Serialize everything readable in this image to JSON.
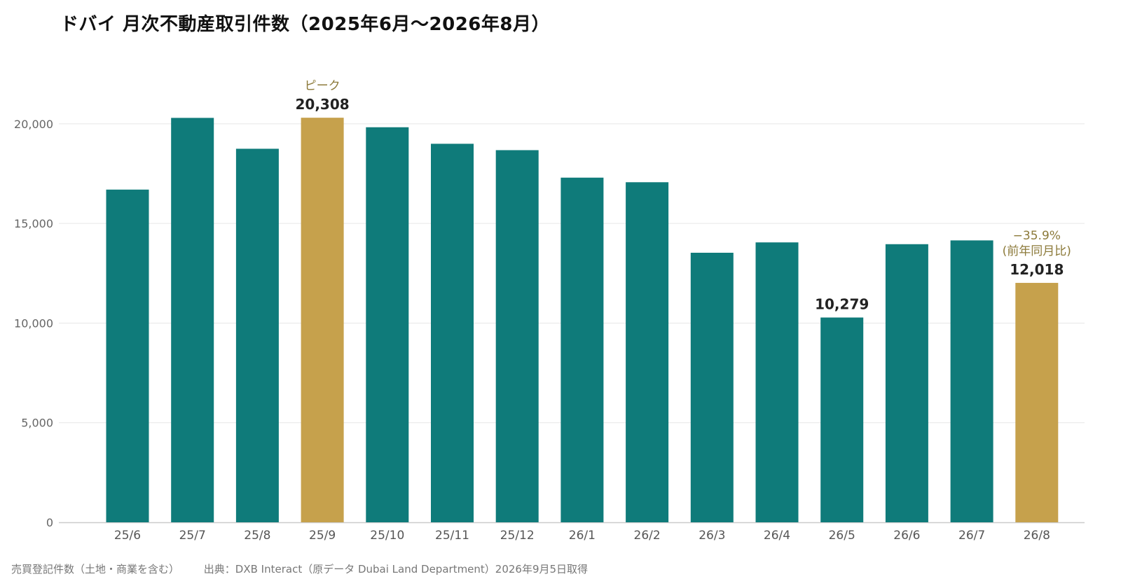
{
  "chart_data": {
    "type": "bar",
    "title": "ドバイ 月次不動産取引件数（2025年6月〜2026年8月）",
    "xlabel": "",
    "ylabel": "",
    "categories": [
      "25/6",
      "25/7",
      "25/8",
      "25/9",
      "25/10",
      "25/11",
      "25/12",
      "26/1",
      "26/2",
      "26/3",
      "26/4",
      "26/5",
      "26/6",
      "26/7",
      "26/8"
    ],
    "values": [
      16700,
      20300,
      18750,
      20308,
      19830,
      19000,
      18680,
      17300,
      17070,
      13530,
      14050,
      10279,
      13960,
      14150,
      12018
    ],
    "ylim": [
      0,
      22000
    ],
    "yticks": [
      0,
      5000,
      10000,
      15000,
      20000
    ],
    "ytick_labels": [
      "0",
      "5,000",
      "10,000",
      "15,000",
      "20,000"
    ],
    "grid": true,
    "legend": "none",
    "colors": {
      "default": "#0f7b7a",
      "highlight": "#c6a14c",
      "annotation": "#8c7a3a",
      "grid": "#e6e6e6",
      "axis_text": "#666666",
      "value_label": "#222222"
    },
    "highlights": [
      3,
      14
    ],
    "value_labels": [
      {
        "index": 3,
        "text": "20,308"
      },
      {
        "index": 11,
        "text": "10,279"
      },
      {
        "index": 14,
        "text": "12,018"
      }
    ],
    "annotations": [
      {
        "index": 3,
        "lines": [
          "ピーク"
        ]
      },
      {
        "index": 14,
        "lines": [
          "−35.9%",
          "(前年同月比)"
        ]
      }
    ]
  },
  "footnote": {
    "note": "売買登記件数（土地・商業を含む）",
    "source": "出典：DXB Interact（原データ Dubai Land Department）2026年9月5日取得"
  }
}
